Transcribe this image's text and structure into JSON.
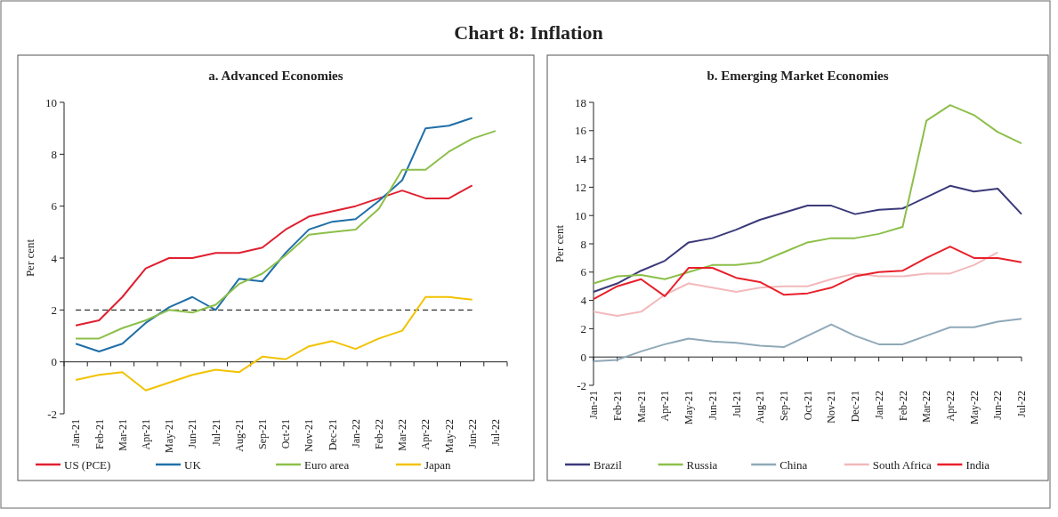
{
  "chart_data": [
    {
      "type": "line",
      "title": "a. Advanced Economies",
      "ylabel": "Per cent",
      "annotations": [
        "Chart 8: Inflation"
      ],
      "categories": [
        "Jan-21",
        "Feb-21",
        "Mar-21",
        "Apr-21",
        "May-21",
        "Jun-21",
        "Jul-21",
        "Aug-21",
        "Sep-21",
        "Oct-21",
        "Nov-21",
        "Dec-21",
        "Jan-22",
        "Feb-22",
        "Mar-22",
        "Apr-22",
        "May-22",
        "Jun-22",
        "Jul-22"
      ],
      "series": [
        {
          "name": "US (PCE)",
          "color": "#e02030",
          "values": [
            1.4,
            1.6,
            2.5,
            3.6,
            4.0,
            4.0,
            4.2,
            4.2,
            4.4,
            5.1,
            5.6,
            5.8,
            6.0,
            6.3,
            6.6,
            6.3,
            6.3,
            6.8,
            null
          ]
        },
        {
          "name": "UK",
          "color": "#1f6fa8",
          "values": [
            0.7,
            0.4,
            0.7,
            1.5,
            2.1,
            2.5,
            2.0,
            3.2,
            3.1,
            4.2,
            5.1,
            5.4,
            5.5,
            6.2,
            7.0,
            9.0,
            9.1,
            9.4,
            null
          ]
        },
        {
          "name": "Euro area",
          "color": "#8cbf4a",
          "values": [
            0.9,
            0.9,
            1.3,
            1.6,
            2.0,
            1.9,
            2.2,
            3.0,
            3.4,
            4.1,
            4.9,
            5.0,
            5.1,
            5.9,
            7.4,
            7.4,
            8.1,
            8.6,
            8.9
          ]
        },
        {
          "name": "Japan",
          "color": "#f2c200",
          "values": [
            -0.7,
            -0.5,
            -0.4,
            -1.1,
            -0.8,
            -0.5,
            -0.3,
            -0.4,
            0.2,
            0.1,
            0.6,
            0.8,
            0.5,
            0.9,
            1.2,
            2.5,
            2.5,
            2.4,
            null
          ]
        }
      ],
      "ylim": [
        -2,
        10
      ],
      "yticks": [
        -2,
        0,
        2,
        4,
        6,
        8,
        10
      ],
      "ref_lines": [
        {
          "axis": "y",
          "value": 2,
          "color": "#000000",
          "line_style": "dashed"
        }
      ],
      "legend": "bottom",
      "grid": false,
      "line_style": "solid",
      "marker": "none"
    },
    {
      "type": "line",
      "title": "b. Emerging Market Economies",
      "ylabel": "Per cent",
      "categories": [
        "Jan-21",
        "Feb-21",
        "Mar-21",
        "Apr-21",
        "May-21",
        "Jun-21",
        "Jul-21",
        "Aug-21",
        "Sep-21",
        "Oct-21",
        "Nov-21",
        "Dec-21",
        "Jan-22",
        "Feb-22",
        "Mar-22",
        "Apr-22",
        "May-22",
        "Jun-22",
        "Jul-22"
      ],
      "series": [
        {
          "name": "Brazil",
          "color": "#3b3a7a",
          "values": [
            4.6,
            5.2,
            6.1,
            6.8,
            8.1,
            8.4,
            9.0,
            9.7,
            10.2,
            10.7,
            10.7,
            10.1,
            10.4,
            10.5,
            11.3,
            12.1,
            11.7,
            11.9,
            10.1
          ]
        },
        {
          "name": "Russia",
          "color": "#8cbf4a",
          "values": [
            5.2,
            5.7,
            5.8,
            5.5,
            6.0,
            6.5,
            6.5,
            6.7,
            7.4,
            8.1,
            8.4,
            8.4,
            8.7,
            9.2,
            16.7,
            17.8,
            17.1,
            15.9,
            15.1
          ]
        },
        {
          "name": "China",
          "color": "#8fa9b8",
          "values": [
            -0.3,
            -0.2,
            0.4,
            0.9,
            1.3,
            1.1,
            1.0,
            0.8,
            0.7,
            1.5,
            2.3,
            1.5,
            0.9,
            0.9,
            1.5,
            2.1,
            2.1,
            2.5,
            2.7
          ]
        },
        {
          "name": "South Africa",
          "color": "#f2b9bc",
          "values": [
            3.2,
            2.9,
            3.2,
            4.4,
            5.2,
            4.9,
            4.6,
            4.9,
            5.0,
            5.0,
            5.5,
            5.9,
            5.7,
            5.7,
            5.9,
            5.9,
            6.5,
            7.4,
            null
          ]
        },
        {
          "name": "India",
          "color": "#e8202a",
          "values": [
            4.1,
            5.0,
            5.5,
            4.3,
            6.3,
            6.3,
            5.6,
            5.3,
            4.4,
            4.5,
            4.9,
            5.7,
            6.0,
            6.1,
            7.0,
            7.8,
            7.0,
            7.0,
            6.7
          ]
        }
      ],
      "ylim": [
        -2,
        18
      ],
      "yticks": [
        -2,
        0,
        2,
        4,
        6,
        8,
        10,
        12,
        14,
        16,
        18
      ],
      "legend": "bottom",
      "line_style": "solid",
      "marker": "none"
    }
  ]
}
